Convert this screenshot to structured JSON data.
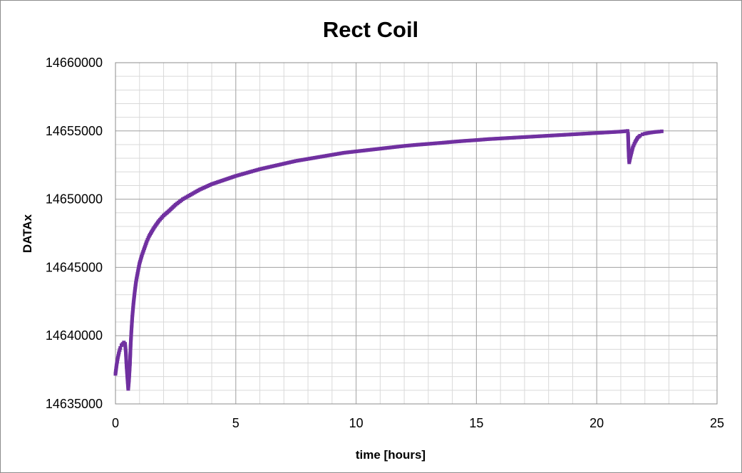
{
  "chart_data": {
    "type": "scatter",
    "title": "Rect Coil",
    "xlabel": "time [hours]",
    "ylabel": "DATAx",
    "xlim": [
      0,
      25
    ],
    "ylim": [
      14635000,
      14660000
    ],
    "x_ticks": [
      0,
      5,
      10,
      15,
      20,
      25
    ],
    "y_ticks": [
      14635000,
      14640000,
      14645000,
      14650000,
      14655000,
      14660000
    ],
    "x_minor_step": 1,
    "y_minor_step": 1000,
    "grid": true,
    "legend": "none",
    "marker_color": "#7030a0",
    "series": [
      {
        "x": [
          0.0,
          0.05,
          0.1,
          0.15,
          0.2,
          0.25,
          0.3,
          0.35,
          0.4,
          0.43,
          0.46,
          0.5,
          0.53,
          0.56,
          0.6,
          0.63,
          0.66,
          0.7,
          0.75,
          0.8,
          0.85,
          0.9,
          1.0,
          1.1,
          1.2,
          1.3,
          1.4,
          1.5,
          1.6,
          1.8,
          2.0,
          2.2,
          2.5,
          2.8,
          3.0,
          3.5,
          4.0,
          4.5,
          5.0,
          5.5,
          6.0,
          6.5,
          7.0,
          7.5,
          8.0,
          8.5,
          9.0,
          9.5,
          10.0,
          10.5,
          11.0,
          11.5,
          12.0,
          12.5,
          13.0,
          13.5,
          14.0,
          14.5,
          15.0,
          15.5,
          16.0,
          16.5,
          17.0,
          17.5,
          18.0,
          18.5,
          19.0,
          19.5,
          20.0,
          20.5,
          21.0,
          21.2,
          21.28,
          21.3,
          21.33,
          21.35,
          21.4,
          21.5,
          21.6,
          21.7,
          21.8,
          21.9,
          22.0,
          22.2,
          22.4,
          22.6,
          22.7
        ],
        "y": [
          14637200,
          14637900,
          14638400,
          14638800,
          14639100,
          14639300,
          14639400,
          14639500,
          14639400,
          14638800,
          14637800,
          14636800,
          14636100,
          14636700,
          14637900,
          14639300,
          14640300,
          14641400,
          14642400,
          14643200,
          14643900,
          14644400,
          14645300,
          14645900,
          14646400,
          14646900,
          14647300,
          14647600,
          14647900,
          14648400,
          14648800,
          14649100,
          14649600,
          14650000,
          14650200,
          14650700,
          14651100,
          14651400,
          14651700,
          14651950,
          14652200,
          14652400,
          14652600,
          14652800,
          14652950,
          14653100,
          14653250,
          14653400,
          14653500,
          14653600,
          14653700,
          14653800,
          14653900,
          14653980,
          14654050,
          14654120,
          14654200,
          14654270,
          14654330,
          14654400,
          14654450,
          14654500,
          14654550,
          14654600,
          14654650,
          14654700,
          14654750,
          14654800,
          14654850,
          14654900,
          14654950,
          14654980,
          14655000,
          14654800,
          14653200,
          14652700,
          14653100,
          14653800,
          14654200,
          14654500,
          14654650,
          14654750,
          14654800,
          14654870,
          14654920,
          14654950,
          14654970
        ]
      }
    ]
  }
}
